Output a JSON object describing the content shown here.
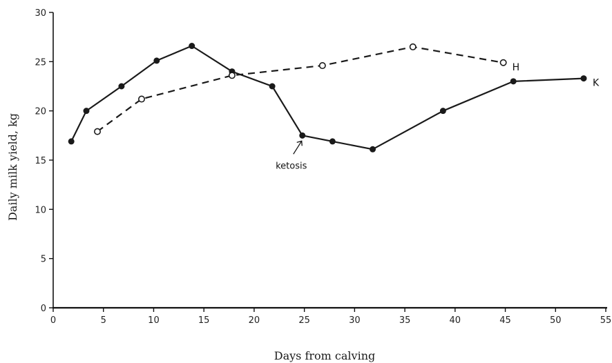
{
  "chart_data": {
    "type": "line",
    "title": "",
    "xlabel": "Days from calving",
    "ylabel": "Daily milk yield, kg",
    "xlim": [
      0,
      55
    ],
    "ylim": [
      0,
      30
    ],
    "x_ticks": [
      0,
      5,
      10,
      15,
      20,
      25,
      30,
      35,
      40,
      45,
      50,
      55
    ],
    "y_ticks": [
      0,
      5,
      10,
      15,
      20,
      25,
      30
    ],
    "grid": false,
    "legend": "none",
    "series": [
      {
        "name": "K",
        "line_style": "solid",
        "marker": "filled-circle",
        "color": "#1a1a1a",
        "x": [
          1.8,
          3.3,
          6.8,
          10.3,
          13.8,
          17.8,
          21.8,
          24.8,
          27.8,
          31.8,
          38.8,
          45.8,
          52.8
        ],
        "y": [
          16.9,
          20.0,
          22.5,
          25.1,
          26.6,
          24.0,
          22.5,
          17.5,
          16.9,
          16.1,
          20.0,
          23.0,
          23.3
        ]
      },
      {
        "name": "H",
        "line_style": "dashed",
        "marker": "open-circle",
        "color": "#1a1a1a",
        "x": [
          4.4,
          8.8,
          17.8,
          26.8,
          35.8,
          44.8
        ],
        "y": [
          17.9,
          21.2,
          23.6,
          24.6,
          26.5,
          24.9
        ]
      }
    ],
    "annotations": [
      {
        "text": "ketosis",
        "target_x": 24.8,
        "target_y": 17.5
      }
    ]
  }
}
